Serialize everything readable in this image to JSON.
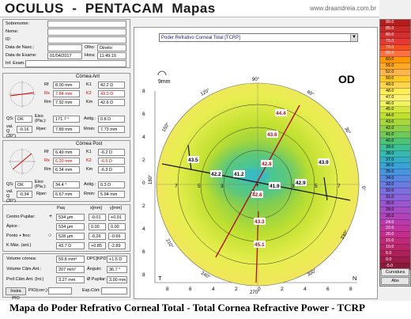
{
  "app": {
    "title": "OCULUS  -  PENTACAM  Mapas",
    "website": "www.draandreia.com.br"
  },
  "patient": {
    "sobrenome_label": "Sobrenome:",
    "sobrenome": "",
    "nome_label": "Nome:",
    "nome": "",
    "id_label": "ID:",
    "id": "",
    "nasc_label": "Data de Nasc.:",
    "nasc": "",
    "olho_label": "Olho:",
    "olho": "Direito",
    "exame_label": "Data de Exame:",
    "exame": "01/04/2017",
    "hora_label": "Hora:",
    "hora": "11:49:15",
    "inf_label": "Inf. Exam.:",
    "inf": ""
  },
  "anterior": {
    "title": "Córnea Ant",
    "rf_label": "Rf",
    "rf": "8.00 mm",
    "k1_label": "K1",
    "k1": "42.2 D",
    "rs_label": "Rs",
    "rs": "7.84 mm",
    "k2_label": "K2",
    "k2": "43.0 D",
    "rm_label": "Rm",
    "rm": "7.92 mm",
    "km_label": "Km",
    "km": "42.6 D",
    "qs_label": "QS:",
    "qs": "OK",
    "eixo_label": "Eixo (Pla.):",
    "eixo": "171.7 °",
    "astig_label": "Astig.:",
    "astig": "0.8 D",
    "valq_label": "val. Q (30°)",
    "valq": "-0.16",
    "rper_label": "Rper:",
    "rper": "7.89 mm",
    "rmin_label": "Rmin:",
    "rmin": "7.73 mm"
  },
  "posterior": {
    "title": "Córnea Post",
    "rf_label": "Rf",
    "rf": "6.49 mm",
    "k1_label": "K1",
    "k1": "-6.2 D",
    "rs_label": "Rs",
    "rs": "6.20 mm",
    "k2_label": "K2",
    "k2": "-6.5 D",
    "rm_label": "Rm",
    "rm": "6.34 mm",
    "km_label": "Km",
    "km": "-6.3 D",
    "qs_label": "QS:",
    "qs": "OK",
    "eixo_label": "Eixo (Pla.):",
    "eixo": "34.4 °",
    "astig_label": "Astig.:",
    "astig": "0.3 D",
    "valq_label": "val. Q (30°)",
    "valq": "-0.34",
    "rper_label": "Rper:",
    "rper": "6.67 mm",
    "rmin_label": "Rmin:",
    "rmin": "5.94 mm"
  },
  "pupil": {
    "paq_label": "Paq",
    "x_label": "x[mm]",
    "y_label": "y[mm]",
    "centro_label": "Centro Pupilar:",
    "centro_sym": "+",
    "centro": "534 µm",
    "centro_x": "-0.01",
    "centro_y": "+0.01",
    "apice_label": "Ápice :",
    "apice": "534 µm",
    "apice_x": "0.00",
    "apice_y": "0.00",
    "fino_label": "Ponto + fino:",
    "fino_sym": "○",
    "fino": "528 µm",
    "fino_x": "-0.26",
    "fino_y": "-0.66",
    "kmax_label": "K Máx. (ant.)",
    "kmax": "43.7 D",
    "kmax_x": "+0.85",
    "kmax_y": "-2.89"
  },
  "volume": {
    "vol_label": "Volume córnea:",
    "vol": "59.8 mm³",
    "dpc_label": "DPC[KPD]",
    "dpc": "+1.5 D",
    "cam_label": "Volume Câm.Ant.:",
    "cam": "207 mm³",
    "angulo_label": "Ângulo:",
    "angulo": "36.7 °",
    "prof_label": "Prof.Câm.Ant. (Int.)",
    "prof": "3.27 mm",
    "pupila_label": "Ø Pupilar:",
    "pupila": "3.00 mm",
    "insira_label": "Insira PIO",
    "pio_label": "PIO(corr.):",
    "pio": "",
    "esp_label": "Esp.Córt:",
    "esp": ""
  },
  "map": {
    "dropdown": "Poder Refrativo Corneal Total [TCRP]",
    "eye_label": "OD",
    "zoom_label": "9mm",
    "y_ticks": [
      "8",
      "6",
      "4",
      "2",
      "0",
      "2",
      "4",
      "6",
      "8"
    ],
    "x_ticks": [
      "8",
      "6",
      "4",
      "2",
      "0",
      "2",
      "4",
      "6",
      "8"
    ],
    "t_label": "T",
    "n_label": "N",
    "angle_labels": [
      "90°",
      "120°",
      "150°",
      "180°",
      "210°",
      "240°",
      "270°",
      "300°",
      "330°",
      "0°",
      "30°",
      "60°"
    ],
    "ring_labels": [
      "7",
      "7",
      "5",
      "5",
      "3",
      "3"
    ],
    "values": [
      "44.4",
      "43.6",
      "42.8",
      "43.5",
      "42.2",
      "41.2",
      "41.9",
      "42.9",
      "43.9",
      "42.8",
      "43.3",
      "45.1"
    ]
  },
  "scale": {
    "values": [
      "90.0",
      "85.0",
      "80.0",
      "75.0",
      "70.0",
      "65.0",
      "60.0",
      "55.0",
      "52.0",
      "50.0",
      "49.0",
      "48.0",
      "47.0",
      "46.0",
      "45.0",
      "44.0",
      "43.0",
      "42.0",
      "41.0",
      "40.0",
      "39.0",
      "38.0",
      "37.0",
      "36.0",
      "35.0",
      "34.0",
      "33.0",
      "32.0",
      "31.0",
      "30.0",
      "28.0",
      "26.0",
      "24.0",
      "22.0",
      "20.0",
      "15.0",
      "10.0",
      "5.0",
      "0.0",
      "-5.0"
    ],
    "colors": [
      "#b71c1c",
      "#c62828",
      "#d32f2f",
      "#e53935",
      "#f4511e",
      "#ff7043",
      "#ff9800",
      "#ffa726",
      "#ffb74d",
      "#ffca28",
      "#ffd54f",
      "#ffee58",
      "#fff176",
      "#f0f460",
      "#d6e840",
      "#c0e030",
      "#a4d83c",
      "#8bcf4a",
      "#6ec85a",
      "#4cc478",
      "#3ec096",
      "#36b8b0",
      "#34aec6",
      "#3aa2d6",
      "#4894de",
      "#5886e0",
      "#6a7ae0",
      "#7c6ede",
      "#8c62d8",
      "#9a56d0",
      "#a84cc6",
      "#b242ba",
      "#ba3aac",
      "#c0329c",
      "#c42c8a",
      "#c02878",
      "#b82468",
      "#ac2058",
      "#9c1c48",
      "#8a183a"
    ],
    "curvatura_label": "Curvatura",
    "abs_label": "Abs"
  },
  "caption": "Mapa do Poder Refrativo Corneal Total - Total Cornea Refractive Power - TCRP"
}
